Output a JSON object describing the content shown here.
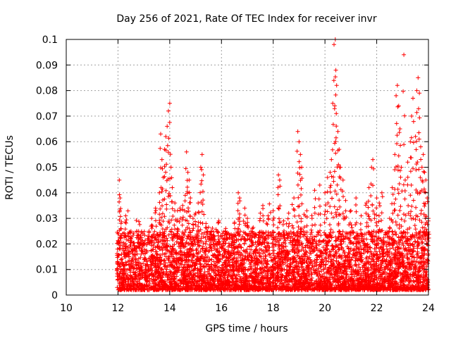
{
  "chart_data": {
    "type": "scatter",
    "title": "Day 256 of 2021, Rate Of TEC Index for receiver invr",
    "xlabel": "GPS time / hours",
    "ylabel": "ROTI / TECUs",
    "xlim": [
      10,
      24
    ],
    "ylim": [
      0,
      0.1
    ],
    "xticks": [
      10,
      12,
      14,
      16,
      18,
      20,
      22,
      24
    ],
    "xtick_labels": [
      "10",
      "12",
      "14",
      "16",
      "18",
      "20",
      "22",
      "24"
    ],
    "yticks": [
      0,
      0.01,
      0.02,
      0.03,
      0.04,
      0.05,
      0.06,
      0.07,
      0.08,
      0.09,
      0.1
    ],
    "ytick_labels": [
      "0",
      "0.01",
      "0.02",
      "0.03",
      "0.04",
      "0.05",
      "0.06",
      "0.07",
      "0.08",
      "0.09",
      "0.1"
    ],
    "grid": true,
    "marker": "+",
    "color": "#ff0000",
    "series": [
      {
        "name": "ROTI",
        "x_range": [
          11.95,
          24.0
        ],
        "dense_band": [
          0.002,
          0.025
        ],
        "points": [
          [
            12.05,
            0.045
          ],
          [
            12.08,
            0.038
          ],
          [
            12.12,
            0.028
          ],
          [
            12.3,
            0.031
          ],
          [
            12.5,
            0.025
          ],
          [
            12.8,
            0.022
          ],
          [
            13.2,
            0.025
          ],
          [
            13.3,
            0.03
          ],
          [
            13.45,
            0.034
          ],
          [
            13.6,
            0.04
          ],
          [
            13.65,
            0.063
          ],
          [
            13.7,
            0.053
          ],
          [
            13.75,
            0.046
          ],
          [
            13.8,
            0.057
          ],
          [
            13.85,
            0.062
          ],
          [
            13.9,
            0.066
          ],
          [
            13.95,
            0.072
          ],
          [
            14.0,
            0.075
          ],
          [
            14.05,
            0.05
          ],
          [
            14.1,
            0.042
          ],
          [
            14.2,
            0.036
          ],
          [
            14.3,
            0.033
          ],
          [
            14.4,
            0.034
          ],
          [
            14.5,
            0.035
          ],
          [
            14.6,
            0.039
          ],
          [
            14.65,
            0.056
          ],
          [
            14.7,
            0.048
          ],
          [
            14.75,
            0.045
          ],
          [
            14.8,
            0.038
          ],
          [
            14.9,
            0.03
          ],
          [
            15.0,
            0.032
          ],
          [
            15.1,
            0.036
          ],
          [
            15.2,
            0.05
          ],
          [
            15.25,
            0.055
          ],
          [
            15.3,
            0.047
          ],
          [
            15.4,
            0.028
          ],
          [
            15.6,
            0.025
          ],
          [
            15.7,
            0.022
          ],
          [
            15.9,
            0.029
          ],
          [
            16.2,
            0.024
          ],
          [
            16.5,
            0.028
          ],
          [
            16.65,
            0.04
          ],
          [
            16.7,
            0.038
          ],
          [
            16.9,
            0.034
          ],
          [
            17.0,
            0.03
          ],
          [
            17.2,
            0.026
          ],
          [
            17.5,
            0.032
          ],
          [
            17.6,
            0.035
          ],
          [
            17.8,
            0.031
          ],
          [
            18.0,
            0.033
          ],
          [
            18.2,
            0.047
          ],
          [
            18.25,
            0.045
          ],
          [
            18.4,
            0.029
          ],
          [
            18.6,
            0.032
          ],
          [
            18.8,
            0.038
          ],
          [
            18.95,
            0.064
          ],
          [
            19.0,
            0.06
          ],
          [
            19.05,
            0.055
          ],
          [
            19.1,
            0.05
          ],
          [
            19.3,
            0.033
          ],
          [
            19.5,
            0.03
          ],
          [
            19.6,
            0.041
          ],
          [
            19.8,
            0.043
          ],
          [
            20.0,
            0.04
          ],
          [
            20.1,
            0.046
          ],
          [
            20.2,
            0.048
          ],
          [
            20.25,
            0.053
          ],
          [
            20.3,
            0.075
          ],
          [
            20.35,
            0.098
          ],
          [
            20.4,
            0.1
          ],
          [
            20.42,
            0.088
          ],
          [
            20.45,
            0.082
          ],
          [
            20.5,
            0.064
          ],
          [
            20.55,
            0.057
          ],
          [
            20.6,
            0.05
          ],
          [
            20.7,
            0.045
          ],
          [
            20.8,
            0.037
          ],
          [
            21.0,
            0.033
          ],
          [
            21.2,
            0.038
          ],
          [
            21.4,
            0.031
          ],
          [
            21.6,
            0.036
          ],
          [
            21.7,
            0.042
          ],
          [
            21.8,
            0.05
          ],
          [
            21.85,
            0.053
          ],
          [
            22.0,
            0.038
          ],
          [
            22.1,
            0.036
          ],
          [
            22.2,
            0.04
          ],
          [
            22.5,
            0.03
          ],
          [
            22.6,
            0.042
          ],
          [
            22.7,
            0.055
          ],
          [
            22.75,
            0.078
          ],
          [
            22.8,
            0.082
          ],
          [
            22.85,
            0.074
          ],
          [
            22.9,
            0.065
          ],
          [
            22.95,
            0.05
          ],
          [
            23.05,
            0.094
          ],
          [
            23.1,
            0.045
          ],
          [
            23.2,
            0.052
          ],
          [
            23.3,
            0.06
          ],
          [
            23.35,
            0.07
          ],
          [
            23.4,
            0.077
          ],
          [
            23.5,
            0.062
          ],
          [
            23.55,
            0.08
          ],
          [
            23.6,
            0.085
          ],
          [
            23.65,
            0.079
          ],
          [
            23.7,
            0.058
          ],
          [
            23.75,
            0.05
          ],
          [
            23.8,
            0.055
          ],
          [
            23.85,
            0.048
          ],
          [
            23.9,
            0.045
          ],
          [
            23.95,
            0.038
          ],
          [
            24.0,
            0.03
          ]
        ]
      }
    ]
  }
}
